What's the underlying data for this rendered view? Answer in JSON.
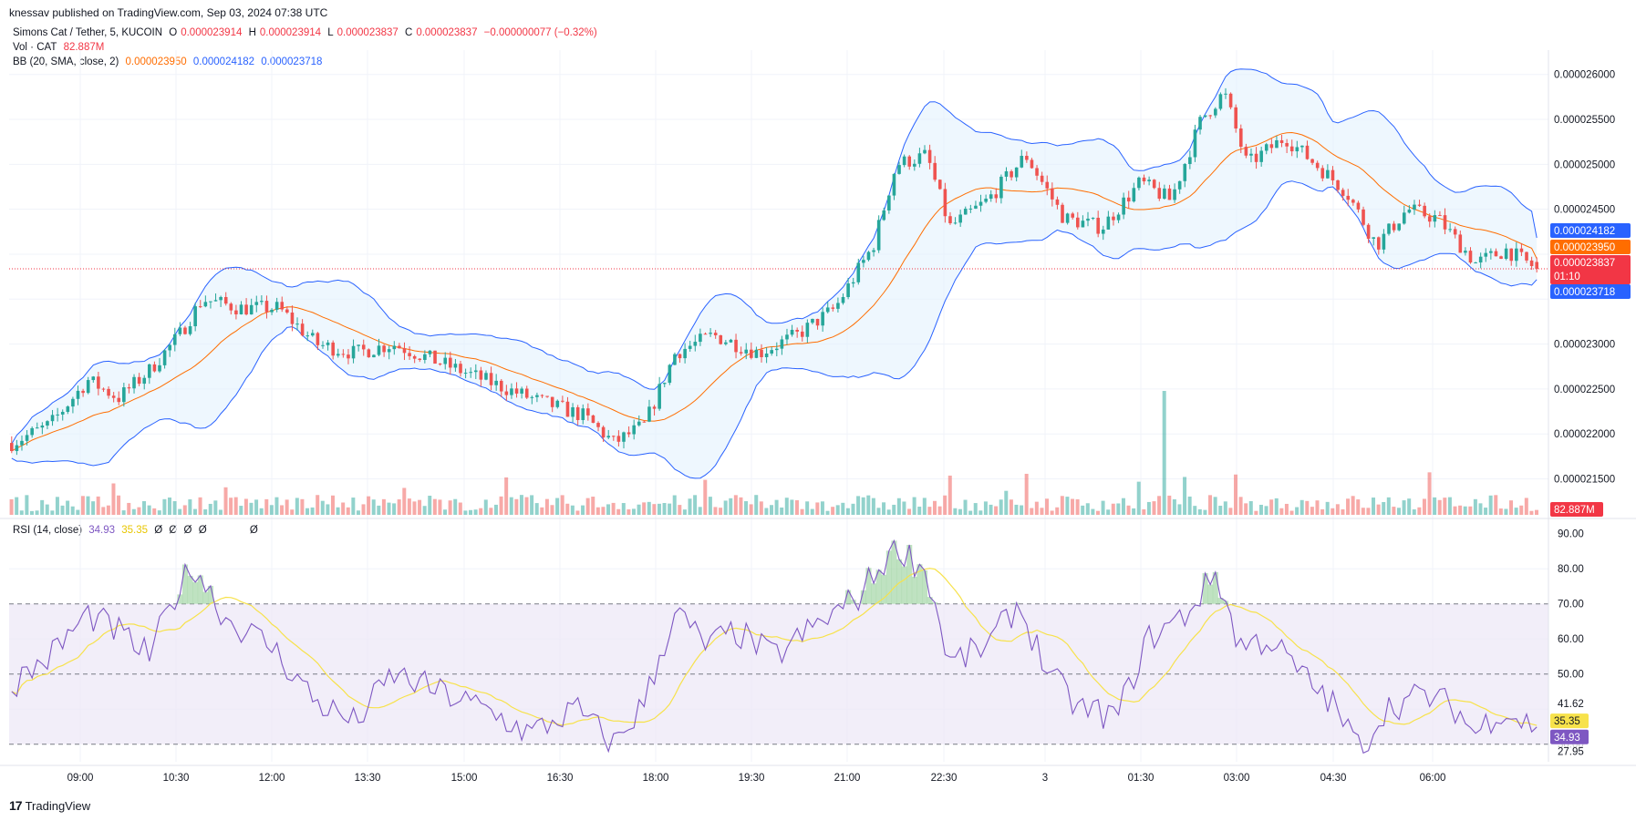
{
  "header": {
    "publisher": "knessav published on TradingView.com, Sep 03, 2024 07:38 UTC"
  },
  "legend": {
    "symbol": "Simons Cat / Tether, 5, KUCOIN",
    "ohlc": {
      "o_label": "O",
      "o": "0.000023914",
      "h_label": "H",
      "h": "0.000023914",
      "l_label": "L",
      "l": "0.000023837",
      "c_label": "C",
      "c": "0.000023837",
      "change": "−0.000000077 (−0.32%)"
    },
    "volume": {
      "label": "Vol · CAT",
      "value": "82.887M"
    },
    "bb": {
      "label": "BB (20, SMA, close, 2)",
      "basis": "0.000023950",
      "upper": "0.000024182",
      "lower": "0.000023718"
    },
    "rsi": {
      "label": "RSI (14, close)",
      "value": "34.93",
      "ma": "35.35",
      "extras": [
        "Ø",
        "Ø",
        "Ø",
        "Ø",
        "Ø"
      ]
    }
  },
  "price_axis": {
    "ticks": [
      "0.000026000",
      "0.000025500",
      "0.000025000",
      "0.000024500",
      "0.000023000",
      "0.000022500",
      "0.000022000",
      "0.000021500"
    ],
    "badges": {
      "upper": "0.000024182",
      "basis": "0.000023950",
      "last": "0.000023837",
      "countdown": "01:10",
      "lower": "0.000023718",
      "volume": "82.887M"
    }
  },
  "rsi_axis": {
    "ticks": [
      "90.00",
      "80.00",
      "70.00",
      "60.00",
      "50.00",
      "41.62",
      "27.95"
    ],
    "badges": {
      "ma": "35.35",
      "rsi": "34.93"
    },
    "hidden_tick": "30.00"
  },
  "time_axis": {
    "labels": [
      "09:00",
      "10:30",
      "12:00",
      "13:30",
      "15:00",
      "16:30",
      "18:00",
      "19:30",
      "21:00",
      "22:30",
      "3",
      "01:30",
      "03:00",
      "04:30",
      "06:00"
    ]
  },
  "footer": {
    "brand": "TradingView",
    "logo_glyph": "17"
  },
  "colors": {
    "up": "#26a69a",
    "down": "#ef5350",
    "bb_band": "#2962ff",
    "bb_basis": "#ff6d00",
    "bb_fill": "#e3f2fd",
    "rsi_line": "#7e57c2",
    "rsi_ma": "#f7e24b",
    "rsi_bg": "#ede7f6",
    "badge_blue": "#2962ff",
    "badge_orange": "#ff6d00",
    "badge_red": "#f23645",
    "badge_purple": "#7e57c2",
    "badge_yellow": "#f7e24b"
  },
  "chart_data": {
    "type": "candlestick",
    "symbol": "Simons Cat / Tether, 5, KUCOIN",
    "price_ylim": [
      2.11e-05,
      2.62e-05
    ],
    "rsi_ylim": [
      25,
      92
    ],
    "rsi_levels": [
      70,
      50,
      30
    ],
    "grid": true,
    "price_anchors": [
      {
        "t": 0,
        "p": 2.19e-05
      },
      {
        "t": 0.025,
        "p": 2.21e-05
      },
      {
        "t": 0.05,
        "p": 2.26e-05
      },
      {
        "t": 0.07,
        "p": 2.24e-05
      },
      {
        "t": 0.09,
        "p": 2.27e-05
      },
      {
        "t": 0.11,
        "p": 2.31e-05
      },
      {
        "t": 0.125,
        "p": 2.35e-05
      },
      {
        "t": 0.15,
        "p": 2.34e-05
      },
      {
        "t": 0.175,
        "p": 2.34e-05
      },
      {
        "t": 0.2,
        "p": 2.3e-05
      },
      {
        "t": 0.225,
        "p": 2.29e-05
      },
      {
        "t": 0.25,
        "p": 2.3e-05
      },
      {
        "t": 0.28,
        "p": 2.28e-05
      },
      {
        "t": 0.31,
        "p": 2.26e-05
      },
      {
        "t": 0.34,
        "p": 2.24e-05
      },
      {
        "t": 0.375,
        "p": 2.22e-05
      },
      {
        "t": 0.395,
        "p": 2.19e-05
      },
      {
        "t": 0.415,
        "p": 2.21e-05
      },
      {
        "t": 0.435,
        "p": 2.29e-05
      },
      {
        "t": 0.46,
        "p": 2.31e-05
      },
      {
        "t": 0.49,
        "p": 2.29e-05
      },
      {
        "t": 0.515,
        "p": 2.31e-05
      },
      {
        "t": 0.54,
        "p": 2.34e-05
      },
      {
        "t": 0.565,
        "p": 2.41e-05
      },
      {
        "t": 0.58,
        "p": 2.5e-05
      },
      {
        "t": 0.6,
        "p": 2.51e-05
      },
      {
        "t": 0.615,
        "p": 2.43e-05
      },
      {
        "t": 0.64,
        "p": 2.46e-05
      },
      {
        "t": 0.665,
        "p": 2.51e-05
      },
      {
        "t": 0.69,
        "p": 2.44e-05
      },
      {
        "t": 0.715,
        "p": 2.43e-05
      },
      {
        "t": 0.74,
        "p": 2.48e-05
      },
      {
        "t": 0.76,
        "p": 2.46e-05
      },
      {
        "t": 0.78,
        "p": 2.55e-05
      },
      {
        "t": 0.795,
        "p": 2.58e-05
      },
      {
        "t": 0.81,
        "p": 2.5e-05
      },
      {
        "t": 0.835,
        "p": 2.53e-05
      },
      {
        "t": 0.855,
        "p": 2.5e-05
      },
      {
        "t": 0.875,
        "p": 2.47e-05
      },
      {
        "t": 0.895,
        "p": 2.41e-05
      },
      {
        "t": 0.915,
        "p": 2.45e-05
      },
      {
        "t": 0.935,
        "p": 2.44e-05
      },
      {
        "t": 0.96,
        "p": 2.39e-05
      },
      {
        "t": 0.98,
        "p": 2.405e-05
      },
      {
        "t": 1.0,
        "p": 2.3837e-05
      }
    ],
    "rsi_anchors": [
      {
        "t": 0,
        "v": 47
      },
      {
        "t": 0.025,
        "v": 55
      },
      {
        "t": 0.05,
        "v": 67
      },
      {
        "t": 0.07,
        "v": 62
      },
      {
        "t": 0.09,
        "v": 55
      },
      {
        "t": 0.11,
        "v": 75
      },
      {
        "t": 0.12,
        "v": 81
      },
      {
        "t": 0.14,
        "v": 66
      },
      {
        "t": 0.17,
        "v": 58
      },
      {
        "t": 0.2,
        "v": 42
      },
      {
        "t": 0.225,
        "v": 36
      },
      {
        "t": 0.25,
        "v": 50
      },
      {
        "t": 0.28,
        "v": 45
      },
      {
        "t": 0.31,
        "v": 40
      },
      {
        "t": 0.34,
        "v": 33
      },
      {
        "t": 0.37,
        "v": 40
      },
      {
        "t": 0.395,
        "v": 30
      },
      {
        "t": 0.415,
        "v": 42
      },
      {
        "t": 0.435,
        "v": 68
      },
      {
        "t": 0.455,
        "v": 58
      },
      {
        "t": 0.475,
        "v": 62
      },
      {
        "t": 0.5,
        "v": 55
      },
      {
        "t": 0.525,
        "v": 63
      },
      {
        "t": 0.555,
        "v": 72
      },
      {
        "t": 0.58,
        "v": 87
      },
      {
        "t": 0.6,
        "v": 79
      },
      {
        "t": 0.615,
        "v": 53
      },
      {
        "t": 0.64,
        "v": 58
      },
      {
        "t": 0.66,
        "v": 70
      },
      {
        "t": 0.68,
        "v": 50
      },
      {
        "t": 0.7,
        "v": 40
      },
      {
        "t": 0.725,
        "v": 38
      },
      {
        "t": 0.745,
        "v": 60
      },
      {
        "t": 0.77,
        "v": 67
      },
      {
        "t": 0.79,
        "v": 79
      },
      {
        "t": 0.805,
        "v": 58
      },
      {
        "t": 0.825,
        "v": 60
      },
      {
        "t": 0.845,
        "v": 50
      },
      {
        "t": 0.865,
        "v": 42
      },
      {
        "t": 0.885,
        "v": 28
      },
      {
        "t": 0.9,
        "v": 40
      },
      {
        "t": 0.925,
        "v": 44
      },
      {
        "t": 0.945,
        "v": 41
      },
      {
        "t": 0.96,
        "v": 33
      },
      {
        "t": 0.975,
        "v": 40
      },
      {
        "t": 1.0,
        "v": 34.93
      }
    ],
    "last": {
      "open": 2.3914e-05,
      "high": 2.3914e-05,
      "low": 2.3837e-05,
      "close": 2.3837e-05,
      "bb_upper": 2.4182e-05,
      "bb_basis": 2.395e-05,
      "bb_lower": 2.3718e-05,
      "volume": "82.887M",
      "rsi": 34.93,
      "rsi_ma": 35.35
    }
  }
}
